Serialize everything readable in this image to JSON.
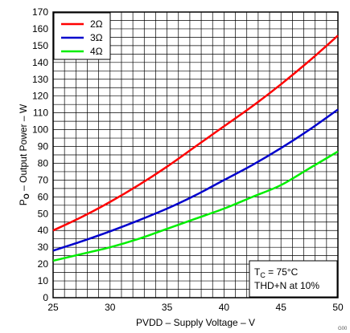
{
  "chart_data": {
    "type": "line",
    "xlabel": "PVDD – Supply Voltage – V",
    "ylabel_main": "P",
    "ylabel_sub": "O",
    "ylabel_rest": " – Output Power – W",
    "xlim": [
      25,
      50
    ],
    "ylim": [
      0,
      170
    ],
    "x_ticks": [
      25,
      30,
      35,
      40,
      45,
      50
    ],
    "y_ticks": [
      0,
      10,
      20,
      30,
      40,
      50,
      60,
      70,
      80,
      90,
      100,
      110,
      120,
      130,
      140,
      150,
      160,
      170
    ],
    "grid": true,
    "legend_position": "top-left",
    "series": [
      {
        "name": "2Ω",
        "color": "#ff0000",
        "x": [
          25,
          27.5,
          30,
          32.5,
          35,
          37.5,
          40,
          42.5,
          45,
          47.5,
          50
        ],
        "y": [
          40,
          48,
          57,
          67,
          78,
          90,
          102,
          114,
          127,
          141,
          156
        ]
      },
      {
        "name": "3Ω",
        "color": "#0000cc",
        "x": [
          25,
          27.5,
          30,
          32.5,
          35,
          37.5,
          40,
          42.5,
          45,
          47.5,
          50
        ],
        "y": [
          28,
          33.5,
          39.5,
          46,
          53,
          61,
          70,
          79,
          89,
          100,
          112
        ]
      },
      {
        "name": "4Ω",
        "color": "#00ee00",
        "x": [
          25,
          27.5,
          30,
          32.5,
          35,
          37.5,
          40,
          42.5,
          45,
          47.5,
          50
        ],
        "y": [
          22,
          26,
          30,
          35,
          41,
          47,
          53,
          60,
          67,
          77,
          87
        ]
      }
    ],
    "annotation": {
      "line1_main": "T",
      "line1_sub": "C",
      "line1_rest": " = 75°C",
      "line2": "THD+N at 10%"
    },
    "figure_id": "G00"
  }
}
